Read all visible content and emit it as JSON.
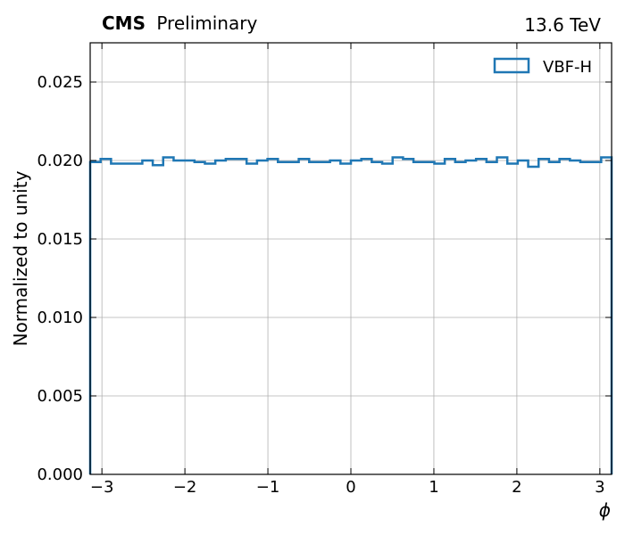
{
  "header": {
    "experiment": "CMS",
    "status": "Preliminary",
    "energy": "13.6 TeV"
  },
  "chart_data": {
    "type": "line",
    "style": "step-histogram",
    "xlabel": "ϕ",
    "ylabel": "Normalized to unity",
    "xlim": [
      -3.14159,
      3.14159
    ],
    "ylim": [
      0,
      0.0275
    ],
    "grid": true,
    "legend_position": "top-right",
    "series_color": "#1f77b4",
    "x_ticks": [
      -3,
      -2,
      -1,
      0,
      1,
      2,
      3
    ],
    "x_tick_labels": [
      "−3",
      "−2",
      "−1",
      "0",
      "1",
      "2",
      "3"
    ],
    "y_ticks": [
      0,
      0.005,
      0.01,
      0.015,
      0.02,
      0.025
    ],
    "y_tick_labels": [
      "0.000",
      "0.005",
      "0.010",
      "0.015",
      "0.020",
      "0.025"
    ],
    "series": [
      {
        "name": "VBF-H",
        "bin_edges": [
          -3.14159,
          -3.01593,
          -2.89027,
          -2.7646,
          -2.63894,
          -2.51327,
          -2.38761,
          -2.26195,
          -2.13628,
          -2.01062,
          -1.88496,
          -1.75929,
          -1.63363,
          -1.50796,
          -1.3823,
          -1.25664,
          -1.13097,
          -1.00531,
          -0.87965,
          -0.75398,
          -0.62832,
          -0.50265,
          -0.37699,
          -0.25133,
          -0.12566,
          0.0,
          0.12566,
          0.25133,
          0.37699,
          0.50265,
          0.62832,
          0.75398,
          0.87965,
          1.00531,
          1.13097,
          1.25664,
          1.3823,
          1.50796,
          1.63363,
          1.75929,
          1.88496,
          2.01062,
          2.13628,
          2.26195,
          2.38761,
          2.51327,
          2.63894,
          2.7646,
          2.89027,
          3.01593,
          3.14159
        ],
        "values": [
          0.0199,
          0.0201,
          0.0198,
          0.0198,
          0.0198,
          0.02,
          0.0197,
          0.0202,
          0.02,
          0.02,
          0.0199,
          0.0198,
          0.02,
          0.0201,
          0.0201,
          0.0198,
          0.02,
          0.0201,
          0.0199,
          0.0199,
          0.0201,
          0.0199,
          0.0199,
          0.02,
          0.0198,
          0.02,
          0.0201,
          0.0199,
          0.0198,
          0.0202,
          0.0201,
          0.0199,
          0.0199,
          0.0198,
          0.0201,
          0.0199,
          0.02,
          0.0201,
          0.0199,
          0.0202,
          0.0198,
          0.02,
          0.0196,
          0.0201,
          0.0199,
          0.0201,
          0.02,
          0.0199,
          0.0199,
          0.0202
        ]
      }
    ]
  }
}
